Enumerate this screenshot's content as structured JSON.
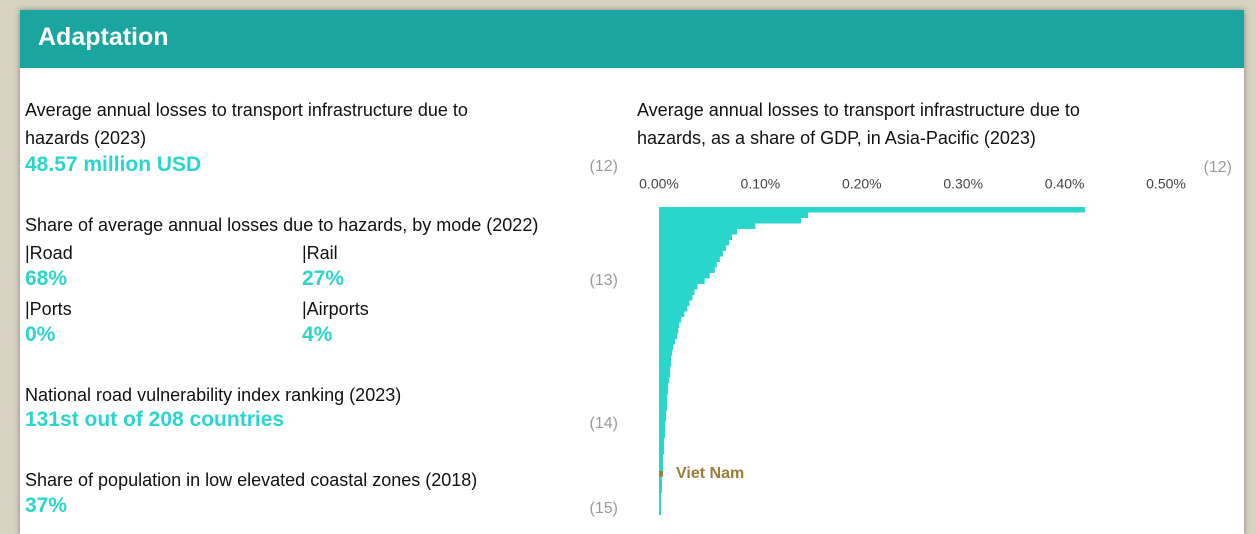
{
  "header": {
    "title": "Adaptation"
  },
  "indicators": [
    {
      "label": "Average annual losses to transport infrastructure due to hazards (2023)",
      "value": "48.57 million USD",
      "source": "(12)"
    },
    {
      "label": "Share of average annual losses due to hazards, by mode (2022)",
      "source": "(13)",
      "modes": [
        {
          "name": "|Road",
          "value": "68%"
        },
        {
          "name": "|Rail",
          "value": "27%"
        },
        {
          "name": "|Ports",
          "value": "0%"
        },
        {
          "name": "|Airports",
          "value": "4%"
        }
      ]
    },
    {
      "label": "National road vulnerability index ranking (2023)",
      "value": "131st out of 208 countries",
      "source": "(14)"
    },
    {
      "label": "Share of population in low elevated coastal zones (2018)",
      "value": "37%",
      "source": "(15)"
    }
  ],
  "chart_data": {
    "type": "hbar",
    "title": "Average annual losses to transport infrastructure due to hazards, as a share of GDP, in Asia-Pacific (2023)",
    "source": "(12)",
    "categories": [
      null,
      null,
      null,
      null,
      null,
      null,
      null,
      null,
      null,
      null,
      null,
      null,
      null,
      null,
      null,
      null,
      null,
      null,
      null,
      null,
      null,
      null,
      null,
      null,
      null,
      null,
      null,
      null,
      null,
      null,
      null,
      null,
      null,
      null,
      null,
      null,
      null,
      null,
      null,
      null,
      null,
      null,
      null,
      null,
      null,
      null,
      null,
      null,
      "Viet Nam",
      null,
      null,
      null,
      null,
      null,
      null,
      null
    ],
    "values": [
      0.42,
      0.147,
      0.14,
      0.095,
      0.077,
      0.072,
      0.069,
      0.066,
      0.063,
      0.06,
      0.057,
      0.055,
      0.05,
      0.045,
      0.038,
      0.035,
      0.033,
      0.03,
      0.028,
      0.025,
      0.022,
      0.02,
      0.019,
      0.018,
      0.016,
      0.014,
      0.013,
      0.012,
      0.012,
      0.011,
      0.011,
      0.01,
      0.009,
      0.009,
      0.008,
      0.008,
      0.008,
      0.007,
      0.007,
      0.006,
      0.006,
      0.006,
      0.005,
      0.005,
      0.005,
      0.004,
      0.004,
      0.004,
      0.004,
      0.003,
      0.003,
      0.003,
      0.002,
      0.002,
      0.002,
      0.002
    ],
    "color": "#2ad6cc",
    "highlight_color": "#9b7d3a",
    "xlim": [
      0,
      0.5
    ],
    "xticks": [
      {
        "value": 0,
        "label": "0.00%"
      },
      {
        "value": 0.1,
        "label": "0.10%"
      },
      {
        "value": 0.2,
        "label": "0.20%"
      },
      {
        "value": 0.3,
        "label": "0.30%"
      },
      {
        "value": 0.4,
        "label": "0.40%"
      },
      {
        "value": 0.5,
        "label": "0.50%"
      }
    ]
  }
}
